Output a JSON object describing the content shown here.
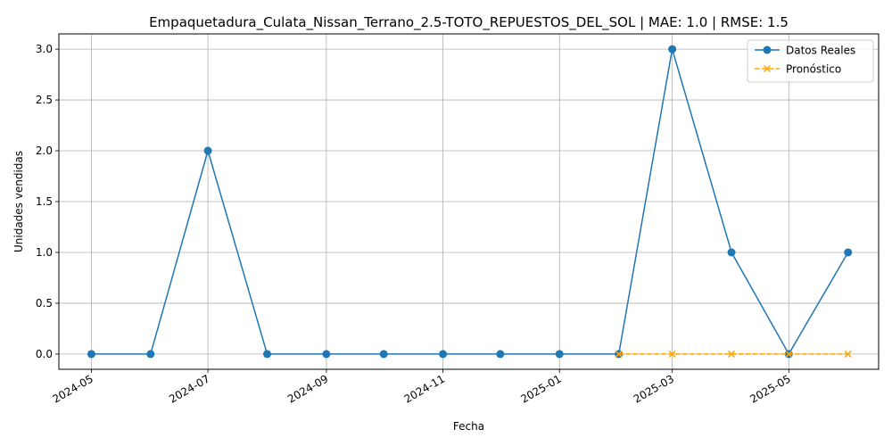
{
  "chart_data": {
    "type": "line",
    "title": "Empaquetadura_Culata_Nissan_Terrano_2.5-TOTO_REPUESTOS_DEL_SOL | MAE: 1.0 | RMSE: 1.5",
    "xlabel": "Fecha",
    "ylabel": "Unidades vendidas",
    "grid": true,
    "legend_position": "top-right",
    "xlim": [
      "2024-04-14",
      "2025-06-17"
    ],
    "ylim": [
      -0.15,
      3.15
    ],
    "x_ticks": [
      "2024-05",
      "2024-07",
      "2024-09",
      "2024-11",
      "2025-01",
      "2025-03",
      "2025-05"
    ],
    "x_tick_dates": [
      "2024-05-01",
      "2024-07-01",
      "2024-09-01",
      "2024-11-01",
      "2025-01-01",
      "2025-03-01",
      "2025-05-01"
    ],
    "y_ticks": [
      "0.0",
      "0.5",
      "1.0",
      "1.5",
      "2.0",
      "2.5",
      "3.0"
    ],
    "y_tick_values": [
      0,
      0.5,
      1.0,
      1.5,
      2.0,
      2.5,
      3.0
    ],
    "series": [
      {
        "name": "Datos Reales",
        "color": "#1f77b4",
        "marker": "circle",
        "line_style": "solid",
        "x": [
          "2024-05-01",
          "2024-06-01",
          "2024-07-01",
          "2024-08-01",
          "2024-09-01",
          "2024-10-01",
          "2024-11-01",
          "2024-12-01",
          "2025-01-01",
          "2025-02-01",
          "2025-03-01",
          "2025-04-01",
          "2025-05-01",
          "2025-06-01"
        ],
        "values": [
          0,
          0,
          2,
          0,
          0,
          0,
          0,
          0,
          0,
          0,
          3,
          1,
          0,
          1
        ]
      },
      {
        "name": "Pronóstico",
        "color": "#ffa500",
        "marker": "x",
        "line_style": "dashed",
        "x": [
          "2025-02-01",
          "2025-03-01",
          "2025-04-01",
          "2025-05-01",
          "2025-06-01"
        ],
        "values": [
          0,
          0,
          0,
          0,
          0
        ]
      }
    ]
  }
}
